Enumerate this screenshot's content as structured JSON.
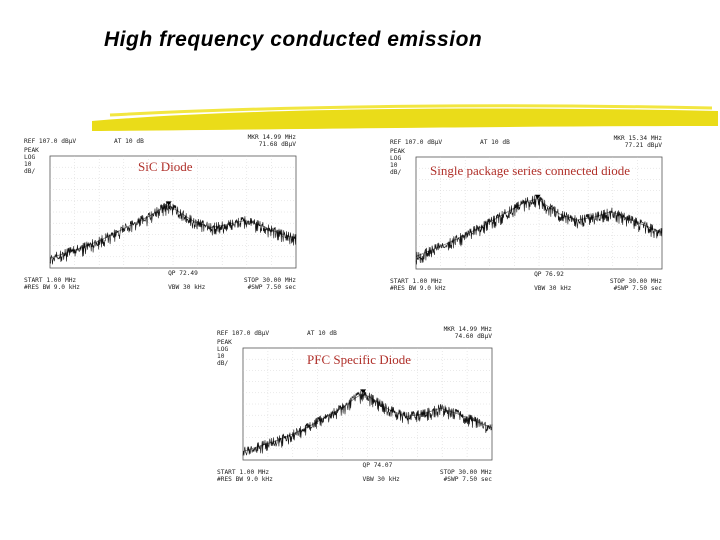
{
  "title": "High frequency conducted emission",
  "colors": {
    "accent_stroke": "#e8d800",
    "trace": "#111111",
    "label": "#b0302a"
  },
  "chart_data": [
    {
      "type": "line",
      "title": "SiC Diode",
      "ref": "REF 107.0 dBµV",
      "atten": "AT 10 dB",
      "mkr_freq": "MKR 14.99 MHz",
      "mkr_level": "71.68 dBµV",
      "scale": [
        "PEAK",
        "LOG",
        "10",
        "dB/"
      ],
      "qp": "QP 72.49",
      "start": "START 1.00 MHz",
      "stop": "STOP 30.00 MHz",
      "rbw": "#RES BW 9.0 kHz",
      "vbw": "VBW 30 kHz",
      "swp": "#SWP 7.50 sec",
      "x": [
        1,
        3,
        5,
        7,
        9,
        11,
        13,
        14,
        14.99,
        16,
        18,
        20,
        22,
        24,
        26,
        28,
        30
      ],
      "y": [
        34,
        38,
        42,
        47,
        53,
        59,
        65,
        69,
        71.7,
        68,
        60,
        56,
        58,
        61,
        57,
        52,
        48
      ],
      "xlim": [
        1,
        30
      ],
      "ylim": [
        27,
        107
      ]
    },
    {
      "type": "line",
      "title": "Single package series connected diode",
      "ref": "REF 107.0 dBµV",
      "atten": "AT 10 dB",
      "mkr_freq": "MKR 15.34 MHz",
      "mkr_level": "77.21 dBµV",
      "scale": [
        "PEAK",
        "LOG",
        "10",
        "dB/"
      ],
      "qp": "QP 76.92",
      "start": "START 1.00 MHz",
      "stop": "STOP 30.00 MHz",
      "rbw": "#RES BW 9.0 kHz",
      "vbw": "VBW 30 kHz",
      "swp": "#SWP 7.50 sec",
      "x": [
        1,
        3,
        5,
        7,
        9,
        11,
        13,
        14,
        15.34,
        16,
        18,
        20,
        22,
        24,
        26,
        28,
        30
      ],
      "y": [
        36,
        41,
        46,
        52,
        58,
        65,
        72,
        75,
        77.2,
        74,
        66,
        62,
        64,
        68,
        63,
        58,
        53
      ],
      "xlim": [
        1,
        30
      ],
      "ylim": [
        27,
        107
      ]
    },
    {
      "type": "line",
      "title": "PFC Specific Diode",
      "ref": "REF 107.0 dBµV",
      "atten": "AT 10 dB",
      "mkr_freq": "MKR 14.99 MHz",
      "mkr_level": "74.60 dBµV",
      "scale": [
        "PEAK",
        "LOG",
        "10",
        "dB/"
      ],
      "qp": "QP 74.07",
      "start": "START 1.00 MHz",
      "stop": "STOP 30.00 MHz",
      "rbw": "#RES BW 9.0 kHz",
      "vbw": "VBW 30 kHz",
      "swp": "#SWP 7.50 sec",
      "x": [
        1,
        3,
        5,
        7,
        9,
        11,
        13,
        14,
        14.99,
        16,
        18,
        20,
        22,
        24,
        26,
        28,
        30
      ],
      "y": [
        33,
        37,
        41,
        46,
        52,
        59,
        66,
        71,
        74.6,
        71,
        63,
        58,
        60,
        64,
        60,
        55,
        50
      ],
      "xlim": [
        1,
        30
      ],
      "ylim": [
        27,
        107
      ]
    }
  ]
}
